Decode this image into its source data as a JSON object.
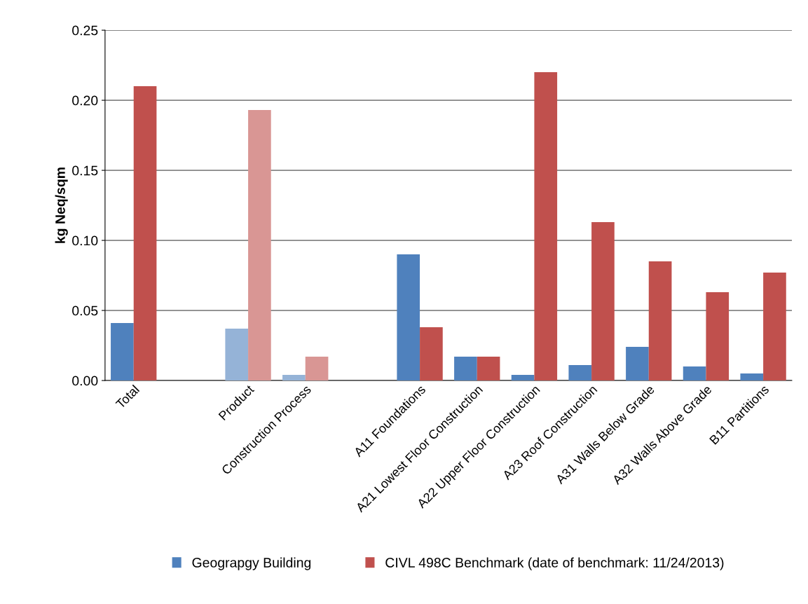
{
  "chart_data": {
    "type": "bar",
    "ylabel": "kg Neq/sqm",
    "categories": [
      "Total",
      null,
      "Product",
      "Construction Process",
      null,
      "A11 Foundations",
      "A21 Lowest Floor Construction",
      "A22 Upper Floor Construction",
      "A23 Roof Construction",
      "A31 Walls Below Grade",
      "A32 Walls Above Grade",
      "B11 Partitions"
    ],
    "series": [
      {
        "name": "Geograpgy Building",
        "color": "#4f81bd",
        "colors": [
          "#4f81bd",
          "#4f81bd",
          "#95b3d7",
          "#95b3d7",
          "#4f81bd",
          "#4f81bd",
          "#4f81bd",
          "#4f81bd",
          "#4f81bd",
          "#4f81bd",
          "#4f81bd",
          "#4f81bd"
        ],
        "values": [
          0.041,
          null,
          0.037,
          0.004,
          null,
          0.09,
          0.017,
          0.004,
          0.011,
          0.024,
          0.01,
          0.005
        ]
      },
      {
        "name": "CIVL 498C Benchmark (date of benchmark: 11/24/2013)",
        "color": "#c0504d",
        "colors": [
          "#c0504d",
          "#c0504d",
          "#d99694",
          "#d99694",
          "#c0504d",
          "#c0504d",
          "#c0504d",
          "#c0504d",
          "#c0504d",
          "#c0504d",
          "#c0504d",
          "#c0504d"
        ],
        "values": [
          0.21,
          null,
          0.193,
          0.017,
          null,
          0.038,
          0.017,
          0.22,
          0.113,
          0.085,
          0.063,
          0.077
        ]
      }
    ],
    "ylim": [
      0,
      0.25
    ],
    "yticks": [
      {
        "value": 0,
        "label": "0.00"
      },
      {
        "value": 0.05,
        "label": "0.05"
      },
      {
        "value": 0.1,
        "label": "0.10"
      },
      {
        "value": 0.15,
        "label": "0.15"
      },
      {
        "value": 0.2,
        "label": "0.20"
      },
      {
        "value": 0.25,
        "label": "0.25"
      }
    ],
    "grid": "y",
    "legend": "bottom"
  }
}
